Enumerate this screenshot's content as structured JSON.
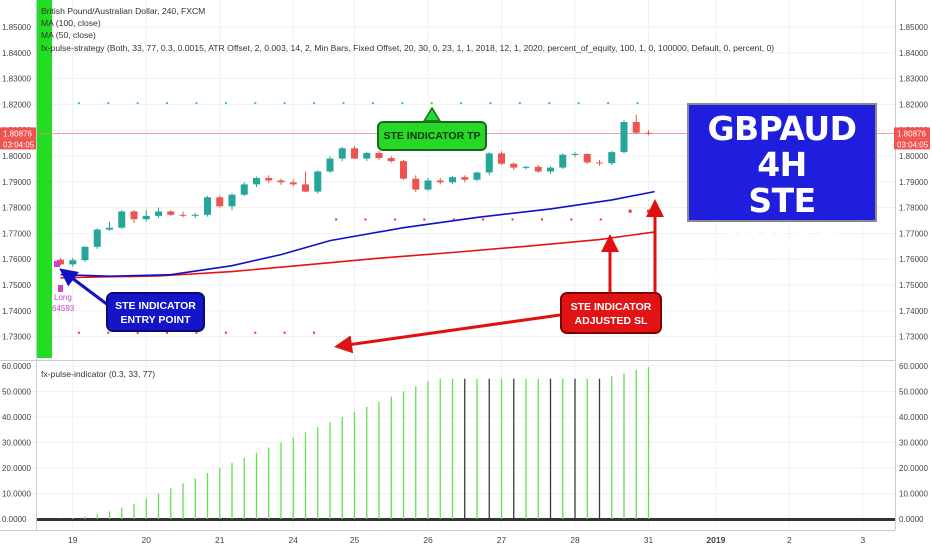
{
  "chart_data": {
    "type": "candlestick",
    "legend_lines": [
      "British Pound/Australian Dollar, 240, FXCM",
      "MA (100, close)",
      "MA (50, close)",
      "fx-pulse-strategy (Both, 33, 77, 0.3, 0.0015, ATR Offset, 2, 0.003, 14, 2, Min Bars, Fixed Offset, 20, 30, 0, 23, 1, 1, 2018, 12, 1, 2020, percent_of_equity, 100, 1, 0, 100000, Default, 0, percent, 0)"
    ],
    "ylim": [
      1.725,
      1.859
    ],
    "y_ticks": [
      "1.85000",
      "1.84000",
      "1.83000",
      "1.82000",
      "1.81000",
      "1.80000",
      "1.79000",
      "1.78000",
      "1.77000",
      "1.76000",
      "1.75000",
      "1.74000",
      "1.73000"
    ],
    "y_tick_values": [
      1.85,
      1.84,
      1.83,
      1.82,
      1.81,
      1.8,
      1.79,
      1.78,
      1.77,
      1.76,
      1.75,
      1.74,
      1.73
    ],
    "last_price_label": "1.80876",
    "last_price_value": 1.80876,
    "countdown_label": "03:04:05",
    "x_ticks": [
      "19",
      "20",
      "21",
      "24",
      "25",
      "26",
      "27",
      "28",
      "31",
      "2019",
      "2",
      "3"
    ],
    "x_tick_bar_index": [
      1,
      7,
      13,
      19,
      24,
      30,
      36,
      42,
      48,
      53.5,
      59.5,
      65.5
    ],
    "candles": [
      {
        "o": 1.7598,
        "h": 1.7605,
        "l": 1.7577,
        "c": 1.758
      },
      {
        "o": 1.758,
        "h": 1.7605,
        "l": 1.757,
        "c": 1.7596
      },
      {
        "o": 1.7596,
        "h": 1.765,
        "l": 1.759,
        "c": 1.7648
      },
      {
        "o": 1.7648,
        "h": 1.772,
        "l": 1.764,
        "c": 1.7715
      },
      {
        "o": 1.7715,
        "h": 1.7745,
        "l": 1.771,
        "c": 1.7722
      },
      {
        "o": 1.7722,
        "h": 1.779,
        "l": 1.7718,
        "c": 1.7785
      },
      {
        "o": 1.7785,
        "h": 1.779,
        "l": 1.774,
        "c": 1.7755
      },
      {
        "o": 1.7755,
        "h": 1.779,
        "l": 1.7745,
        "c": 1.7768
      },
      {
        "o": 1.7768,
        "h": 1.78,
        "l": 1.776,
        "c": 1.7785
      },
      {
        "o": 1.7785,
        "h": 1.779,
        "l": 1.7768,
        "c": 1.7772
      },
      {
        "o": 1.7772,
        "h": 1.7785,
        "l": 1.7762,
        "c": 1.777
      },
      {
        "o": 1.777,
        "h": 1.778,
        "l": 1.776,
        "c": 1.7772
      },
      {
        "o": 1.7772,
        "h": 1.7845,
        "l": 1.7765,
        "c": 1.784
      },
      {
        "o": 1.784,
        "h": 1.7848,
        "l": 1.78,
        "c": 1.7805
      },
      {
        "o": 1.7805,
        "h": 1.7855,
        "l": 1.779,
        "c": 1.785
      },
      {
        "o": 1.785,
        "h": 1.79,
        "l": 1.7845,
        "c": 1.789
      },
      {
        "o": 1.789,
        "h": 1.792,
        "l": 1.788,
        "c": 1.7915
      },
      {
        "o": 1.7915,
        "h": 1.7925,
        "l": 1.7895,
        "c": 1.7905
      },
      {
        "o": 1.7905,
        "h": 1.7912,
        "l": 1.7888,
        "c": 1.7898
      },
      {
        "o": 1.7898,
        "h": 1.791,
        "l": 1.7882,
        "c": 1.789
      },
      {
        "o": 1.789,
        "h": 1.794,
        "l": 1.786,
        "c": 1.7862
      },
      {
        "o": 1.7862,
        "h": 1.7945,
        "l": 1.7855,
        "c": 1.794
      },
      {
        "o": 1.794,
        "h": 1.7998,
        "l": 1.7935,
        "c": 1.799
      },
      {
        "o": 1.799,
        "h": 1.8035,
        "l": 1.798,
        "c": 1.803
      },
      {
        "o": 1.803,
        "h": 1.8038,
        "l": 1.7988,
        "c": 1.799
      },
      {
        "o": 1.799,
        "h": 1.8015,
        "l": 1.798,
        "c": 1.8012
      },
      {
        "o": 1.8012,
        "h": 1.802,
        "l": 1.7985,
        "c": 1.7992
      },
      {
        "o": 1.7992,
        "h": 1.8,
        "l": 1.7975,
        "c": 1.798
      },
      {
        "o": 1.798,
        "h": 1.7985,
        "l": 1.7908,
        "c": 1.7912
      },
      {
        "o": 1.7912,
        "h": 1.7925,
        "l": 1.786,
        "c": 1.787
      },
      {
        "o": 1.787,
        "h": 1.7915,
        "l": 1.7865,
        "c": 1.7905
      },
      {
        "o": 1.7905,
        "h": 1.7915,
        "l": 1.789,
        "c": 1.7898
      },
      {
        "o": 1.7898,
        "h": 1.7922,
        "l": 1.7892,
        "c": 1.7918
      },
      {
        "o": 1.7918,
        "h": 1.7925,
        "l": 1.7898,
        "c": 1.7908
      },
      {
        "o": 1.7908,
        "h": 1.794,
        "l": 1.7902,
        "c": 1.7936
      },
      {
        "o": 1.7936,
        "h": 1.8015,
        "l": 1.7925,
        "c": 1.801
      },
      {
        "o": 1.801,
        "h": 1.8018,
        "l": 1.7965,
        "c": 1.797
      },
      {
        "o": 1.797,
        "h": 1.7975,
        "l": 1.7945,
        "c": 1.7955
      },
      {
        "o": 1.7955,
        "h": 1.7962,
        "l": 1.7948,
        "c": 1.7958
      },
      {
        "o": 1.7958,
        "h": 1.7965,
        "l": 1.7935,
        "c": 1.794
      },
      {
        "o": 1.794,
        "h": 1.796,
        "l": 1.793,
        "c": 1.7955
      },
      {
        "o": 1.7955,
        "h": 1.801,
        "l": 1.795,
        "c": 1.8005
      },
      {
        "o": 1.8005,
        "h": 1.8015,
        "l": 1.7995,
        "c": 1.8008
      },
      {
        "o": 1.8008,
        "h": 1.801,
        "l": 1.797,
        "c": 1.7975
      },
      {
        "o": 1.7975,
        "h": 1.7985,
        "l": 1.7962,
        "c": 1.7972
      },
      {
        "o": 1.7972,
        "h": 1.802,
        "l": 1.7965,
        "c": 1.8015
      },
      {
        "o": 1.8015,
        "h": 1.8138,
        "l": 1.801,
        "c": 1.8132
      },
      {
        "o": 1.8132,
        "h": 1.816,
        "l": 1.8085,
        "c": 1.809
      },
      {
        "o": 1.809,
        "h": 1.81,
        "l": 1.808,
        "c": 1.8087
      }
    ],
    "ma100": [
      [
        0,
        1.7528
      ],
      [
        3,
        1.7531
      ],
      [
        8,
        1.7535
      ],
      [
        14,
        1.7552
      ],
      [
        20,
        1.7578
      ],
      [
        26,
        1.7604
      ],
      [
        32,
        1.7626
      ],
      [
        38,
        1.765
      ],
      [
        44,
        1.7676
      ],
      [
        48.5,
        1.7706
      ]
    ],
    "ma50": [
      [
        0,
        1.754
      ],
      [
        4,
        1.7534
      ],
      [
        9,
        1.754
      ],
      [
        14,
        1.7575
      ],
      [
        18,
        1.7618
      ],
      [
        22,
        1.7672
      ],
      [
        28,
        1.7722
      ],
      [
        34,
        1.7762
      ],
      [
        40,
        1.7795
      ],
      [
        45,
        1.783
      ],
      [
        48.5,
        1.7862
      ]
    ],
    "tp_dots": {
      "value": 1.8205,
      "from": 1.5,
      "to": 48,
      "step": 2.4
    },
    "sl_dots_upper": {
      "value": 1.7754,
      "from": 22.5,
      "to": 46,
      "step": 2.4
    },
    "sl_dots_lower": {
      "value": 1.7315,
      "from": 1.5,
      "to": 22,
      "step": 2.4
    },
    "sl_marks": [
      {
        "x": 46.5,
        "v": 1.7786
      },
      {
        "x": 48,
        "v": 1.7786
      }
    ],
    "entry_labels": [
      "Long",
      "64593"
    ],
    "annotations": {
      "tp": "STE INDICATOR TP",
      "entry_line1": "STE INDICATOR",
      "entry_line2": "ENTRY POINT",
      "sl_line1": "STE INDICATOR",
      "sl_line2": "ADJUSTED SL"
    },
    "title_box_lines": [
      "GBPAUD 4H",
      "STE PULSE",
      "INDICATOR"
    ],
    "indicator": {
      "legend": "fx-pulse-indicator (0.3, 33, 77)",
      "ylim": [
        -2000,
        61500
      ],
      "y_ticks": [
        "60.0000",
        "50.0000",
        "40.0000",
        "30.0000",
        "20.0000",
        "10.0000",
        "0.0000"
      ],
      "y_tick_values": [
        60000,
        50000,
        40000,
        30000,
        20000,
        10000,
        0
      ],
      "values": [
        100,
        400,
        900,
        1800,
        3000,
        4500,
        6000,
        8000,
        10000,
        12000,
        14000,
        16000,
        18000,
        20000,
        22000,
        24000,
        26000,
        28000,
        30000,
        32000,
        34000,
        36000,
        38000,
        40000,
        42000,
        44000,
        46000,
        48000,
        50000,
        52000,
        54000,
        55000,
        55000,
        55000,
        55000,
        55000,
        55000,
        55000,
        55000,
        55000,
        55000,
        55000,
        55000,
        55000,
        55000,
        56000,
        57000,
        58500,
        59500
      ],
      "dark_bars": [
        33,
        35,
        37,
        40,
        42,
        44
      ],
      "colors": {
        "up": "#66dd55",
        "dark": "#3a3a3a"
      }
    },
    "colors": {
      "up": "#26a69a",
      "down": "#ef5350",
      "ma100": "#e81010",
      "ma50": "#1010c8",
      "green_band": "#22dd22",
      "tp_dots": "#33dd33",
      "sl_dots": "#ee3333",
      "price_line": "#f08080",
      "last_price_bg": "#ef5350"
    },
    "grid": true
  }
}
